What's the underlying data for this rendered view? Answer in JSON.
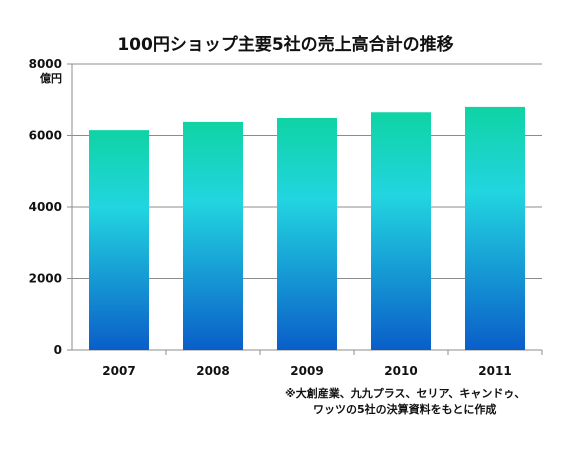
{
  "chart_data": {
    "type": "bar",
    "title": "100円ショップ主要5社の売上高合計の推移",
    "ylabel": "億円",
    "xlabel": "",
    "categories": [
      "2007",
      "2008",
      "2009",
      "2010",
      "2011"
    ],
    "values": [
      6150,
      6380,
      6490,
      6650,
      6800
    ],
    "ylim": [
      0,
      8000
    ],
    "yticks": [
      0,
      2000,
      4000,
      6000,
      8000
    ],
    "grid": true,
    "legend": "none",
    "bar_gradient": {
      "top": "#0fd3a4",
      "middle": "#22d5e0",
      "bottom": "#0a5ec8"
    },
    "gridline_color": "#8c8c8c",
    "annotation": {
      "line1": "※大創産業、九九プラス、セリア、キャンドゥ、",
      "line2": "ワッツの5社の決算資料をもとに作成"
    }
  }
}
